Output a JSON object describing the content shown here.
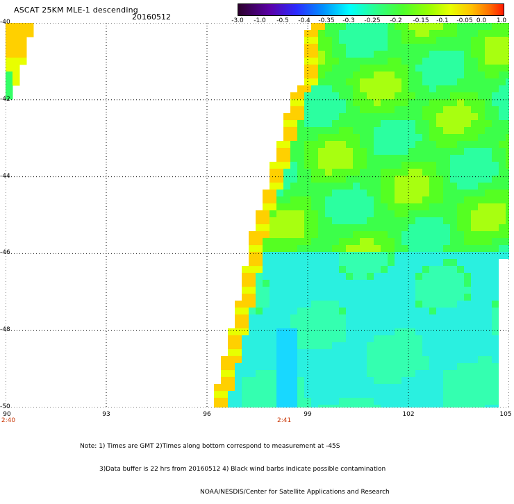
{
  "header": {
    "title": "ASCAT 25KM MLE-1 descending",
    "date": "20160512"
  },
  "colorbar": {
    "ticks": [
      "-3.0",
      "-1.0",
      "-0.5",
      "-0.4",
      "-0.35",
      "-0.3",
      "-0.25",
      "-0.2",
      "-0.15",
      "-0.1",
      "-0.05",
      "0.0",
      "1.0"
    ],
    "colors": [
      "#2b002b",
      "#5a00a8",
      "#2b2bff",
      "#0090ff",
      "#00d8ff",
      "#00ffd0",
      "#2bff8a",
      "#4dff2b",
      "#9aff00",
      "#e8ff00",
      "#ffc000",
      "#ff6a00",
      "#ff1a00"
    ]
  },
  "axes": {
    "lat_labels": [
      "-40",
      "-42",
      "-44",
      "-46",
      "-48",
      "-50"
    ],
    "lon_labels": [
      "90",
      "93",
      "96",
      "99",
      "102",
      "105"
    ],
    "time_labels": [
      {
        "text": "2:40",
        "lon": 90
      },
      {
        "text": "2:41",
        "lon": 98.3
      }
    ]
  },
  "note": {
    "line1": "Note: 1) Times are GMT 2)Times along bottom correspond to measurement at -45S",
    "line2": "3)Data buffer is 22 hrs from 20160512 4) Black wind barbs indicate possible contamination",
    "line3": "NOAA/NESDIS/Center for Satellite Applications and Research"
  }
}
